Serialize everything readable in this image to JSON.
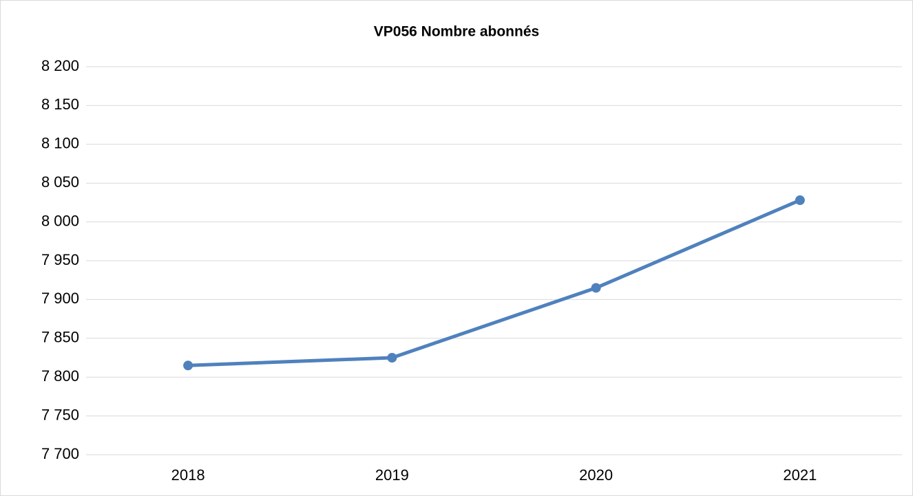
{
  "chart_data": {
    "type": "line",
    "title": "VP056 Nombre abonnés",
    "categories": [
      "2018",
      "2019",
      "2020",
      "2021"
    ],
    "series": [
      {
        "name": "Nombre abonnés",
        "color": "#4f81bd",
        "values": [
          7815,
          7825,
          7915,
          8028
        ]
      }
    ],
    "ylim": [
      7700,
      8200
    ],
    "yticks": [
      {
        "value": 7700,
        "label": "7 700"
      },
      {
        "value": 7750,
        "label": "7 750"
      },
      {
        "value": 7800,
        "label": "7 800"
      },
      {
        "value": 7850,
        "label": "7 850"
      },
      {
        "value": 7900,
        "label": "7 900"
      },
      {
        "value": 7950,
        "label": "7 950"
      },
      {
        "value": 8000,
        "label": "8 000"
      },
      {
        "value": 8050,
        "label": "8 050"
      },
      {
        "value": 8100,
        "label": "8 100"
      },
      {
        "value": 8150,
        "label": "8 150"
      },
      {
        "value": 8200,
        "label": "8 200"
      }
    ],
    "grid": true
  }
}
